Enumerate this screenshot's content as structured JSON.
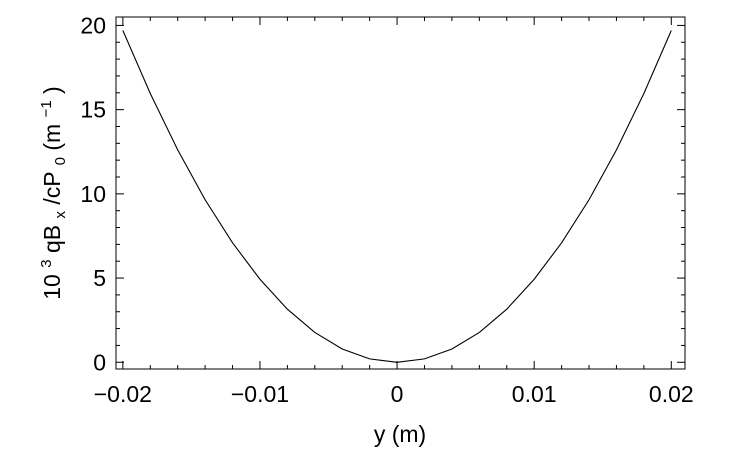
{
  "chart_data": {
    "type": "line",
    "xlabel": "y (m)",
    "ylabel": {
      "prefix": "10",
      "prefix_sup": "3",
      "main": "qB",
      "main_sub": "x",
      "middle": "/cP",
      "middle_sub": "0",
      "unit_open": " (m",
      "unit_sup": "−1",
      "unit_close": ")"
    },
    "xlim": [
      -0.0205,
      0.021
    ],
    "ylim": [
      -0.4,
      20.5
    ],
    "x_ticks": [
      -0.02,
      -0.01,
      0,
      0.01,
      0.02
    ],
    "x_tick_labels": [
      "−0.02",
      "−0.01",
      "0",
      "0.01",
      "0.02"
    ],
    "y_ticks": [
      0,
      5,
      10,
      15,
      20
    ],
    "y_tick_labels": [
      "0",
      "5",
      "10",
      "15",
      "20"
    ],
    "grid": false,
    "series": [
      {
        "x": [
          -0.02,
          -0.018,
          -0.016,
          -0.014,
          -0.012,
          -0.01,
          -0.008,
          -0.006,
          -0.004,
          -0.002,
          0,
          0.002,
          0.004,
          0.006,
          0.008,
          0.01,
          0.012,
          0.014,
          0.016,
          0.018,
          0.02
        ],
        "y": [
          19.7,
          15.96,
          12.61,
          9.65,
          7.09,
          4.93,
          3.15,
          1.77,
          0.79,
          0.2,
          0,
          0.2,
          0.79,
          1.77,
          3.15,
          4.93,
          7.09,
          9.65,
          12.61,
          15.96,
          19.7
        ]
      }
    ]
  }
}
